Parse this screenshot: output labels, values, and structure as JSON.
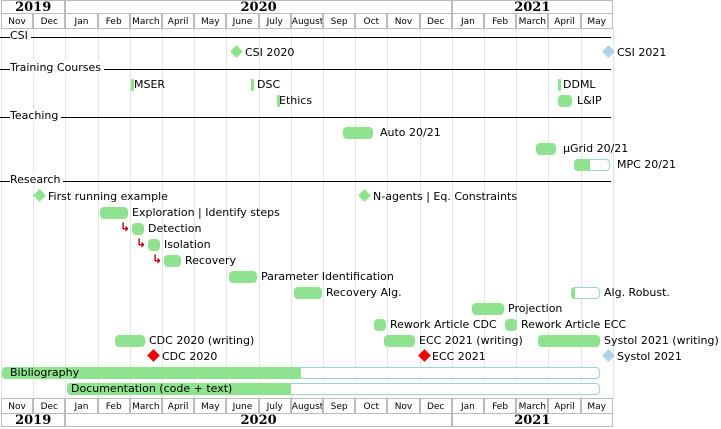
{
  "timeline": {
    "years": [
      "2019",
      "2020",
      "2021"
    ],
    "months": [
      "Nov",
      "Dec",
      "Jan",
      "Feb",
      "March",
      "April",
      "May",
      "June",
      "July",
      "August",
      "Sep",
      "Oct",
      "Nov",
      "Dec",
      "Jan",
      "Feb",
      "March",
      "April",
      "May"
    ]
  },
  "groups": {
    "csi": "CSI",
    "training": "Training Courses",
    "teaching": "Teaching",
    "research": "Research"
  },
  "items": {
    "csi_2020": "CSI 2020",
    "csi_2021": "CSI 2021",
    "mser": "MSER",
    "dsc": "DSC",
    "ethics": "Ethics",
    "ddml": "DDML",
    "lip": "L&IP",
    "auto": "Auto 20/21",
    "mugrid": "µGrid 20/21",
    "mpc": "MPC 20/21",
    "first_example": "First running example",
    "nagents": "N-agents | Eq. Constraints",
    "exploration": "Exploration | Identify steps",
    "detection": "Detection",
    "isolation": "Isolation",
    "recovery": "Recovery",
    "param_id": "Parameter Identification",
    "recovery_alg": "Recovery Alg.",
    "projection": "Projection",
    "alg_robust": "Alg. Robust.",
    "rework_cdc": "Rework Article CDC",
    "rework_ecc": "Rework Article ECC",
    "cdc_writing": "CDC 2020 (writing)",
    "ecc_writing": "ECC 2021 (writing)",
    "systol_writing": "Systol 2021 (writing)",
    "cdc_2020": "CDC 2020",
    "ecc_2021": "ECC 2021",
    "systol_2021": "Systol 2021",
    "bibliography": "Bibliography",
    "documentation": "Documentation (code + text)"
  },
  "progress": {
    "mpc": 0.45,
    "alg_robust": 0.15,
    "bibliography": 0.5,
    "documentation": 0.42
  },
  "colors": {
    "done": "#8fe38f",
    "milestone_done": "#8fe38f",
    "milestone_deadline": "#ee0000",
    "milestone_future": "#a9d4e6",
    "arrow": "#c00000"
  },
  "icons": {
    "dependency": "↳"
  }
}
